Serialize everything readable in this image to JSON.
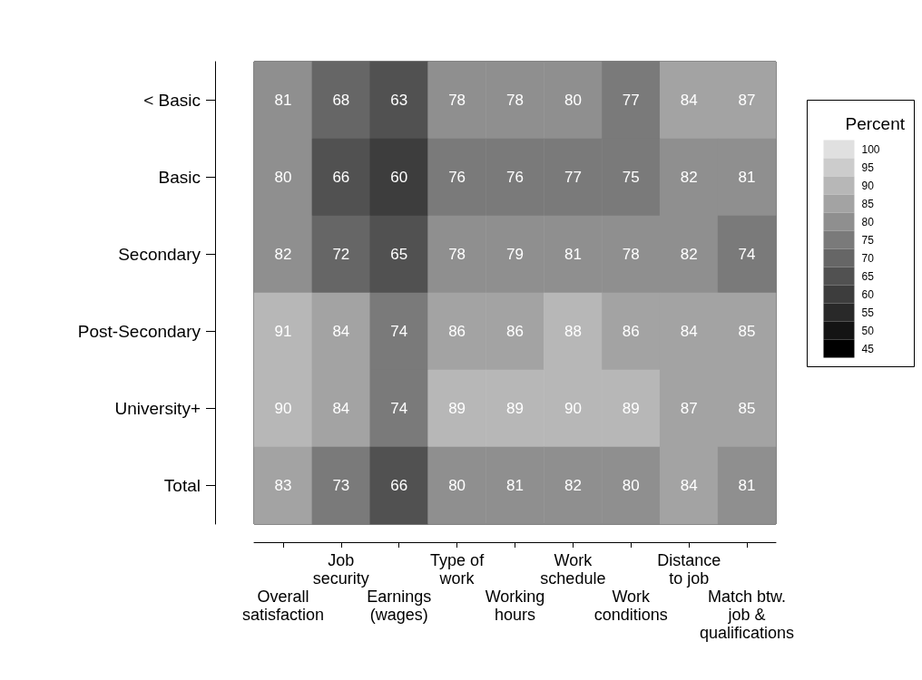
{
  "chart_data": {
    "type": "heatmap",
    "categories": [
      "Overall\nsatisfaction",
      "Job\nsecurity",
      "Earnings\n(wages)",
      "Type of\nwork",
      "Working\nhours",
      "Work\nschedule",
      "Work\nconditions",
      "Distance\nto job",
      "Match btw.\njob &\nqualifications"
    ],
    "y_categories": [
      "< Basic",
      "Basic",
      "Secondary",
      "Post-Secondary",
      "University+",
      "Total"
    ],
    "cells": [
      [
        81,
        68,
        63,
        78,
        78,
        80,
        77,
        84,
        87
      ],
      [
        80,
        66,
        60,
        76,
        76,
        77,
        75,
        82,
        81
      ],
      [
        82,
        72,
        65,
        78,
        79,
        81,
        78,
        82,
        74
      ],
      [
        91,
        84,
        74,
        86,
        86,
        88,
        86,
        84,
        85
      ],
      [
        90,
        84,
        74,
        89,
        89,
        90,
        89,
        87,
        85
      ],
      [
        83,
        73,
        66,
        80,
        81,
        82,
        80,
        84,
        81
      ]
    ],
    "data_labels": true,
    "legend_title": "Percent",
    "clim": [
      42.5,
      102.5
    ],
    "cticks": [
      45,
      50,
      55,
      60,
      65,
      70,
      75,
      80,
      85,
      90,
      95,
      100
    ]
  }
}
